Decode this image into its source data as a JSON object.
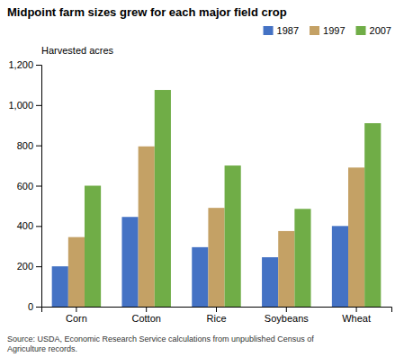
{
  "chart_data": {
    "type": "bar",
    "title": "Midpoint farm sizes grew for each major field crop",
    "ylabel": "Harvested acres",
    "source": "Source: USDA, Economic Research Service calculations from unpublished Census of\nAgriculture records.",
    "categories": [
      "Corn",
      "Cotton",
      "Rice",
      "Soybeans",
      "Wheat"
    ],
    "series": [
      {
        "name": "1987",
        "color": "#4472C4",
        "values": [
          200,
          445,
          295,
          245,
          400
        ]
      },
      {
        "name": "1997",
        "color": "#C4A165",
        "values": [
          345,
          795,
          490,
          375,
          690
        ]
      },
      {
        "name": "2007",
        "color": "#70AD47",
        "values": [
          600,
          1075,
          700,
          485,
          910
        ]
      }
    ],
    "ylim": [
      0,
      1200
    ],
    "yticks": [
      0,
      200,
      400,
      600,
      {
        "value": 800,
        "label": "800"
      },
      {
        "value": 1000,
        "label": "1,000"
      },
      {
        "value": 1200,
        "label": "1,200"
      }
    ],
    "grid": false,
    "legend": "upper right"
  }
}
